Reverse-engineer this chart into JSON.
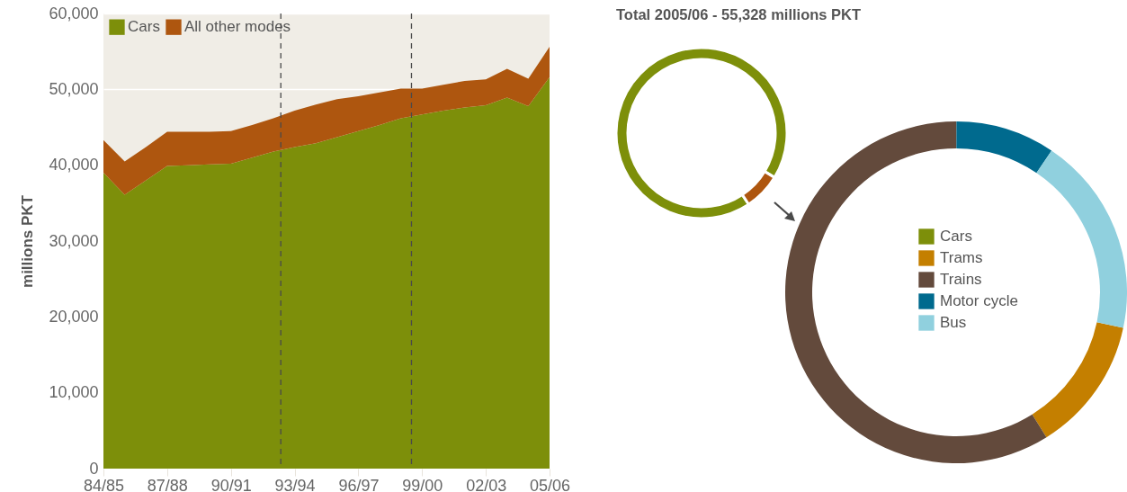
{
  "chart_data": [
    {
      "type": "area",
      "stacked": true,
      "ylabel": "millions PKT",
      "categories": [
        "84/85",
        null,
        null,
        "87/88",
        null,
        null,
        "90/91",
        null,
        null,
        "93/94",
        null,
        null,
        "96/97",
        null,
        null,
        "99/00",
        null,
        null,
        "02/03",
        null,
        null,
        "05/06"
      ],
      "series": [
        {
          "name": "Cars",
          "color": "#7d8f0a",
          "values": [
            39000,
            36100,
            38000,
            39900,
            40000,
            40100,
            40200,
            41000,
            41800,
            42400,
            42900,
            43700,
            44500,
            45300,
            46200,
            46700,
            47200,
            47600,
            47900,
            48900,
            47800,
            51600
          ]
        },
        {
          "name": "All other modes",
          "color": "#ae560f",
          "values": [
            4300,
            4400,
            4400,
            4500,
            4400,
            4300,
            4300,
            4300,
            4400,
            4800,
            5100,
            5000,
            4600,
            4300,
            3900,
            3400,
            3400,
            3500,
            3400,
            3800,
            3600,
            4000
          ]
        }
      ],
      "ylim": [
        0,
        60000
      ],
      "yticks": [
        0,
        {
          "value": 10000,
          "label": "10,000"
        },
        {
          "value": 20000,
          "label": "20,000"
        },
        {
          "value": 30000,
          "label": "30,000"
        },
        {
          "value": 40000,
          "label": "40,000"
        },
        {
          "value": 50000,
          "label": "50,000"
        },
        {
          "value": 60000,
          "label": "60,000"
        }
      ],
      "grid": "y",
      "legend": "top left"
    },
    {
      "type": "donut",
      "title": "Total 2005/06 - 55,328 millions PKT",
      "categories": [
        "Cars",
        null
      ],
      "values": [
        93,
        7
      ],
      "colors": [
        "#7d8f0a",
        "#ae560f"
      ],
      "legend": "center"
    },
    {
      "type": "donut",
      "categories": [
        "Trams",
        "Trains",
        "Motor cycle",
        "Bus"
      ],
      "values": [
        12.8,
        58.9,
        9.4,
        18.9
      ],
      "colors": [
        "#c47f00",
        "#634a3c",
        "#006a8e",
        "#90d0de"
      ],
      "legend": "center"
    }
  ]
}
